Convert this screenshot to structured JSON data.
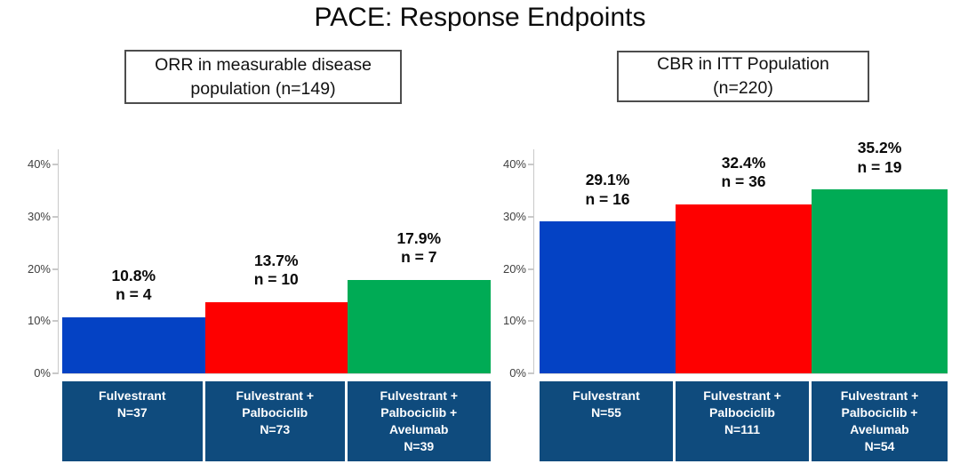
{
  "page_title": "PACE: Response Endpoints",
  "colors": {
    "bar_blue": "#0442c4",
    "bar_red": "#fe0000",
    "bar_green": "#00ab55",
    "category_band_navy": "#0f4b7d",
    "axis_line_gray": "#c9c9c9",
    "tick_text_gray": "#3f3f3f",
    "title_text": "#0a0a0a"
  },
  "chart_data": [
    {
      "type": "bar",
      "title": "ORR in measurable disease population (n=149)",
      "categories": [
        "Fulvestrant\nN=37",
        "Fulvestrant +\nPalbociclib\nN=73",
        "Fulvestrant +\nPalbociclib +\nAvelumab\nN=39"
      ],
      "values": [
        10.8,
        13.7,
        17.9
      ],
      "counts": [
        4,
        10,
        7
      ],
      "value_labels": [
        "10.8%\nn = 4",
        "13.7%\nn = 10",
        "17.9%\nn = 7"
      ],
      "bar_color_keys": [
        "bar_blue",
        "bar_red",
        "bar_green"
      ],
      "ylabel": "",
      "xlabel": "",
      "ytick_labels": [
        "0%",
        "10%",
        "20%",
        "30%",
        "40%"
      ],
      "ytick_values": [
        0,
        10,
        20,
        30,
        40
      ],
      "ylim": [
        0,
        42.9
      ],
      "grid": false,
      "legend_position": "none"
    },
    {
      "type": "bar",
      "title": "CBR in ITT Population (n=220)",
      "categories": [
        "Fulvestrant\nN=55",
        "Fulvestrant +\nPalbociclib\nN=111",
        "Fulvestrant +\nPalbociclib +\nAvelumab\nN=54"
      ],
      "values": [
        29.1,
        32.4,
        35.2
      ],
      "counts": [
        16,
        36,
        19
      ],
      "value_labels": [
        "29.1%\nn = 16",
        "32.4%\nn = 36",
        "35.2%\nn = 19"
      ],
      "bar_color_keys": [
        "bar_blue",
        "bar_red",
        "bar_green"
      ],
      "ylabel": "",
      "xlabel": "",
      "ytick_labels": [
        "0%",
        "10%",
        "20%",
        "30%",
        "40%"
      ],
      "ytick_values": [
        0,
        10,
        20,
        30,
        40
      ],
      "ylim": [
        0,
        42.9
      ],
      "grid": false,
      "legend_position": "none"
    }
  ]
}
